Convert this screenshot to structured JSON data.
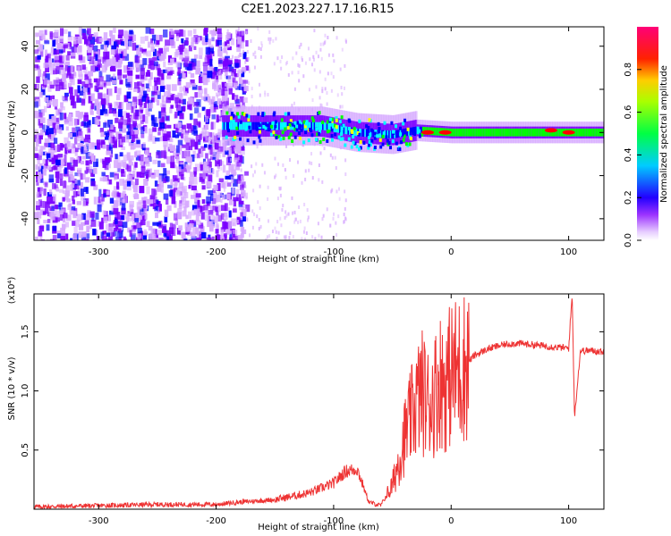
{
  "title": "C2E1.2023.227.17.16.R15",
  "chart_data": [
    {
      "type": "heatmap",
      "xlabel": "Height of straight line (km)",
      "ylabel": "Frequency (Hz)",
      "xlim": [
        -355,
        130
      ],
      "ylim": [
        -50,
        49
      ],
      "xticks": [
        -300,
        -200,
        -100,
        0,
        100
      ],
      "yticks": [
        -40,
        -20,
        0,
        20,
        40
      ],
      "colorbar": {
        "label": "Normalized spectral amplitude",
        "range": [
          0,
          1
        ],
        "ticks": [
          "0.0",
          "0.2",
          "0.4",
          "0.6",
          "0.8"
        ],
        "colors": [
          "#ffffff",
          "#d6a8ff",
          "#7a00ff",
          "#0000ff",
          "#00ffff",
          "#00ff00",
          "#ffff00",
          "#ff0000",
          "#ff00aa"
        ]
      },
      "features": {
        "noise_region_x": [
          -355,
          -190
        ],
        "band_center_hz": [
          [
            -195,
            3
          ],
          [
            -150,
            3
          ],
          [
            -110,
            3
          ],
          [
            -80,
            0
          ],
          [
            -50,
            -1
          ],
          [
            -30,
            1
          ],
          [
            0,
            0
          ],
          [
            130,
            0
          ]
        ],
        "hot_spots": [
          [
            -20,
            0
          ],
          [
            -5,
            0
          ],
          [
            85,
            1
          ],
          [
            100,
            0
          ]
        ]
      }
    },
    {
      "type": "line",
      "xlabel": "Height of straight line (km)",
      "ylabel": "SNR (10 * v/v)",
      "yscale_label": "(x10⁴)",
      "xlim": [
        -355,
        130
      ],
      "ylim": [
        0,
        1.82
      ],
      "xticks": [
        -300,
        -200,
        -100,
        0,
        100
      ],
      "yticks": [
        0.5,
        1.0,
        1.5
      ],
      "ytick_labels": [
        "0.5",
        "1.0",
        "1.5"
      ],
      "color": "#ee3333",
      "x": [
        -355,
        -300,
        -250,
        -200,
        -180,
        -150,
        -120,
        -100,
        -90,
        -80,
        -70,
        -60,
        -50,
        -40,
        -30,
        -25,
        -20,
        -15,
        -10,
        -5,
        0,
        10,
        20,
        30,
        40,
        50,
        60,
        80,
        100,
        103,
        105,
        110,
        120,
        130
      ],
      "y": [
        0.02,
        0.03,
        0.04,
        0.04,
        0.06,
        0.08,
        0.14,
        0.22,
        0.32,
        0.34,
        0.06,
        0.03,
        0.2,
        0.6,
        0.9,
        1.0,
        0.9,
        0.95,
        1.1,
        1.05,
        1.15,
        1.2,
        1.3,
        1.35,
        1.38,
        1.4,
        1.4,
        1.38,
        1.36,
        1.82,
        0.78,
        1.34,
        1.34,
        1.33
      ]
    }
  ]
}
